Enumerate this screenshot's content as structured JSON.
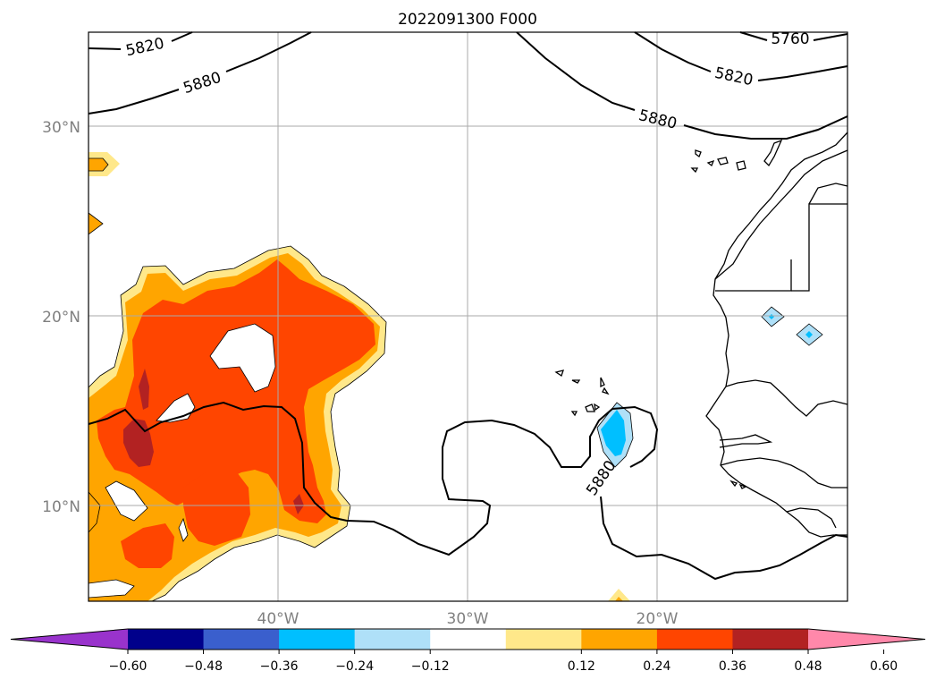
{
  "title": "2022091300 F000",
  "map": {
    "lat_labels": [
      "30°N",
      "20°N",
      "10°N"
    ],
    "lon_labels": [
      "40°W",
      "30°W",
      "20°W"
    ],
    "grid": true,
    "contour_labels": [
      "5820",
      "5880",
      "5760",
      "5820",
      "5880",
      "5880"
    ]
  },
  "colorbar": {
    "ticks": [
      "−0.60",
      "−0.48",
      "−0.36",
      "−0.24",
      "−0.12",
      "0.12",
      "0.24",
      "0.36",
      "0.48",
      "0.60"
    ],
    "colors": [
      "#9933cc",
      "#00008b",
      "#3a5fcd",
      "#00bfff",
      "#afe0f8",
      "#ffffff",
      "#ffe88a",
      "#ffa500",
      "#ff4500",
      "#b22222",
      "#ff88aa"
    ],
    "extend": "both"
  }
}
